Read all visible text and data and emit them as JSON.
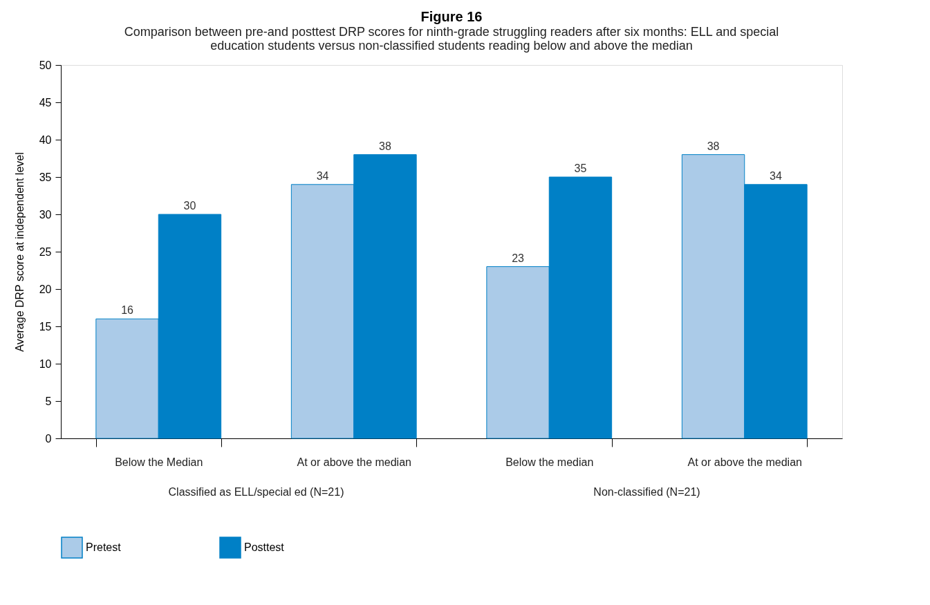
{
  "chart_data": {
    "type": "bar",
    "title": "Figure 16",
    "subtitle": "Comparison between pre-and posttest DRP scores for ninth-grade struggling readers after six months: ELL and special education students versus non-classified students reading below and above the median",
    "ylabel": "Average DRP score at independent level",
    "categories": [
      "Below the Median",
      "At or above the median",
      "Below the median",
      "At or above the median"
    ],
    "series": [
      {
        "name": "Pretest",
        "color": "#abcbe8",
        "values": [
          16,
          34,
          23,
          38
        ]
      },
      {
        "name": "Posttest",
        "color": "#0080c6",
        "values": [
          30,
          38,
          35,
          34
        ]
      }
    ],
    "ylim": [
      0,
      50
    ],
    "yticks": [
      0,
      5,
      10,
      15,
      20,
      25,
      30,
      35,
      40,
      45,
      50
    ],
    "grid": false,
    "legend": "bottom",
    "data_labels": true,
    "annotations": [
      "Classified as ELL/special ed (N=21)",
      "Non-classified (N=21)"
    ]
  }
}
